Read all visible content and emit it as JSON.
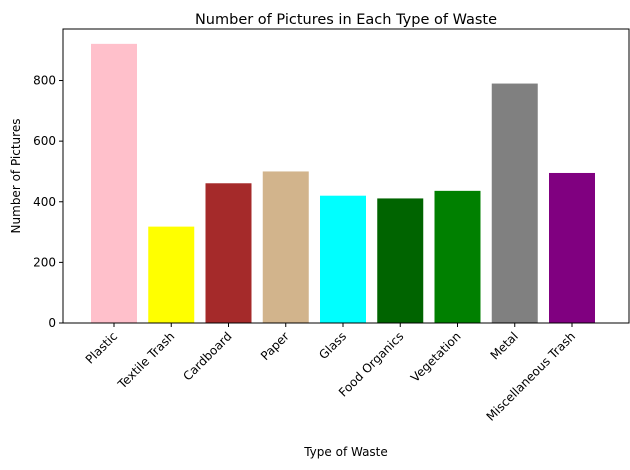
{
  "chart_data": {
    "type": "bar",
    "title": "Number of Pictures in Each Type of Waste",
    "xlabel": "Type of Waste",
    "ylabel": "Number of Pictures",
    "categories": [
      "Plastic",
      "Textile Trash",
      "Cardboard",
      "Paper",
      "Glass",
      "Food Organics",
      "Vegetation",
      "Metal",
      "Miscellaneous Trash"
    ],
    "values": [
      921,
      318,
      461,
      500,
      420,
      411,
      436,
      790,
      495
    ],
    "colors": [
      "#ffc0cb",
      "#ffff00",
      "#a52a2a",
      "#d2b48c",
      "#00ffff",
      "#006400",
      "#008000",
      "#808080",
      "#800080"
    ],
    "ylim": [
      0,
      970
    ],
    "yticks": [
      0,
      200,
      400,
      600,
      800
    ],
    "grid": false,
    "legend": "none"
  }
}
